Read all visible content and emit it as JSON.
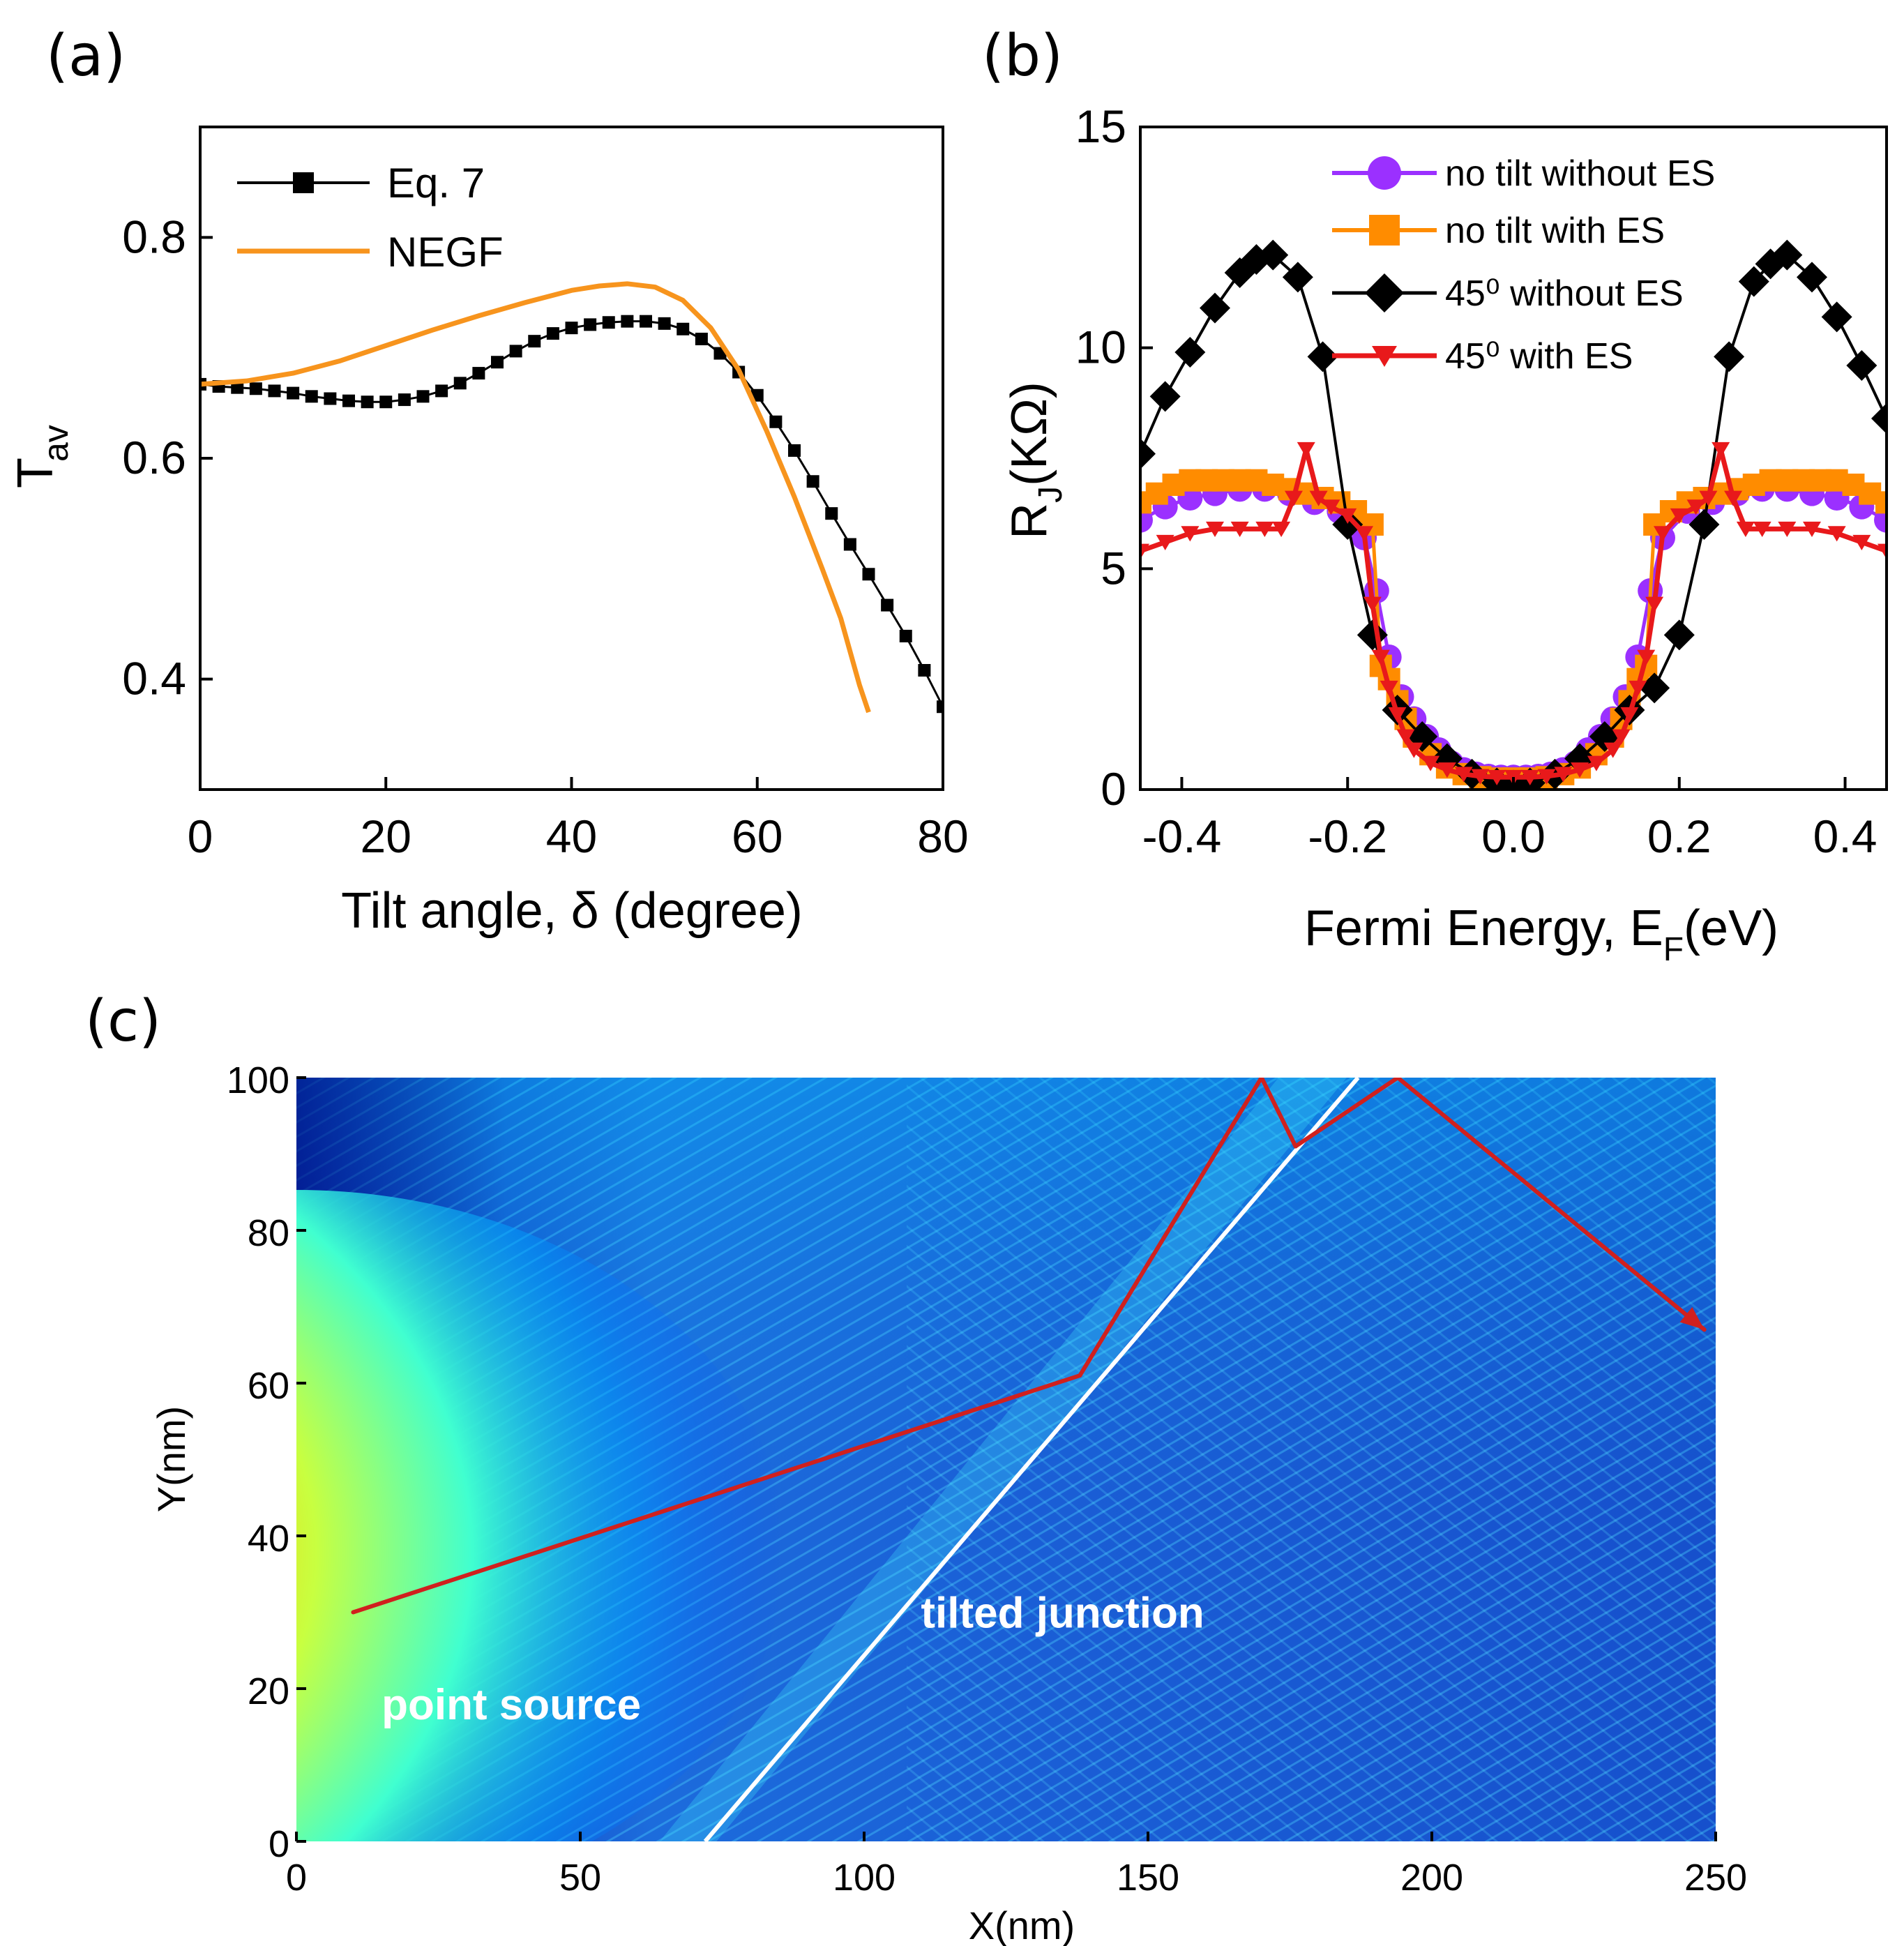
{
  "chart_data": [
    {
      "panel": "(a)",
      "type": "line",
      "xlabel": "Tilt angle, δ (degree)",
      "ylabel_main": "T",
      "ylabel_sub": "av",
      "xlim": [
        0,
        80
      ],
      "ylim": [
        0.3,
        0.9
      ],
      "xticks": [
        0,
        20,
        40,
        60,
        80
      ],
      "yticks": [
        0.4,
        0.6,
        0.8
      ],
      "grid": false,
      "legend_position": "top-left",
      "series": [
        {
          "name": "Eq. 7",
          "color": "#000000",
          "marker": "square",
          "x": [
            0,
            2,
            4,
            6,
            8,
            10,
            12,
            14,
            16,
            18,
            20,
            22,
            24,
            26,
            28,
            30,
            32,
            34,
            36,
            38,
            40,
            42,
            44,
            46,
            48,
            50,
            52,
            54,
            56,
            58,
            60,
            62,
            64,
            66,
            68,
            70,
            72,
            74,
            76,
            78,
            80
          ],
          "y": [
            0.667,
            0.665,
            0.664,
            0.663,
            0.661,
            0.659,
            0.656,
            0.654,
            0.652,
            0.651,
            0.651,
            0.653,
            0.656,
            0.661,
            0.668,
            0.677,
            0.687,
            0.697,
            0.706,
            0.713,
            0.718,
            0.721,
            0.723,
            0.724,
            0.724,
            0.722,
            0.717,
            0.708,
            0.695,
            0.678,
            0.657,
            0.633,
            0.607,
            0.579,
            0.55,
            0.522,
            0.495,
            0.467,
            0.439,
            0.408,
            0.375
          ]
        },
        {
          "name": "NEGF",
          "color": "#F7941D",
          "marker": "none",
          "x": [
            0,
            5,
            10,
            15,
            20,
            25,
            30,
            35,
            40,
            43,
            46,
            49,
            52,
            55,
            58,
            61,
            64,
            67,
            69,
            70,
            71,
            72
          ],
          "y": [
            0.667,
            0.67,
            0.677,
            0.688,
            0.702,
            0.716,
            0.729,
            0.741,
            0.752,
            0.756,
            0.758,
            0.755,
            0.743,
            0.718,
            0.68,
            0.625,
            0.565,
            0.5,
            0.455,
            0.425,
            0.395,
            0.37
          ]
        }
      ]
    },
    {
      "panel": "(b)",
      "type": "line",
      "xlabel_main": "Fermi Energy, E",
      "xlabel_sub": "F",
      "xlabel_tail": "(eV)",
      "ylabel_main": "R",
      "ylabel_sub": "J",
      "ylabel_tail": "(KΩ)",
      "xlim": [
        -0.45,
        0.45
      ],
      "ylim": [
        0,
        15
      ],
      "xticks": [
        -0.4,
        -0.2,
        0.0,
        0.2,
        0.4
      ],
      "xtick_labels": [
        "-0.4",
        "-0.2",
        "0.0",
        "0.2",
        "0.4"
      ],
      "yticks": [
        0,
        5,
        10,
        15
      ],
      "grid": false,
      "legend_position": "top-right",
      "series": [
        {
          "name": "no tilt without ES",
          "color": "#9B30FF",
          "marker": "circle",
          "x": [
            -0.45,
            -0.42,
            -0.39,
            -0.36,
            -0.33,
            -0.3,
            -0.27,
            -0.24,
            -0.21,
            -0.18,
            -0.165,
            -0.15,
            -0.135,
            -0.12,
            -0.105,
            -0.09,
            -0.075,
            -0.06,
            -0.045,
            -0.03,
            -0.015,
            0,
            0.015,
            0.03,
            0.045,
            0.06,
            0.075,
            0.09,
            0.105,
            0.12,
            0.135,
            0.15,
            0.165,
            0.18,
            0.21,
            0.24,
            0.27,
            0.3,
            0.33,
            0.36,
            0.39,
            0.42,
            0.45
          ],
          "y": [
            6.1,
            6.4,
            6.6,
            6.7,
            6.8,
            6.8,
            6.7,
            6.5,
            6.3,
            5.7,
            4.5,
            3.0,
            2.1,
            1.6,
            1.2,
            0.9,
            0.6,
            0.45,
            0.35,
            0.3,
            0.28,
            0.28,
            0.28,
            0.3,
            0.35,
            0.45,
            0.6,
            0.9,
            1.2,
            1.6,
            2.1,
            3.0,
            4.5,
            5.7,
            6.3,
            6.5,
            6.7,
            6.8,
            6.8,
            6.7,
            6.6,
            6.4,
            6.1
          ]
        },
        {
          "name": "no tilt with ES",
          "color": "#FF8C00",
          "marker": "square",
          "x": [
            -0.45,
            -0.43,
            -0.41,
            -0.39,
            -0.37,
            -0.35,
            -0.33,
            -0.31,
            -0.29,
            -0.27,
            -0.25,
            -0.23,
            -0.21,
            -0.19,
            -0.17,
            -0.16,
            -0.15,
            -0.14,
            -0.13,
            -0.12,
            -0.1,
            -0.08,
            -0.06,
            -0.04,
            -0.02,
            0,
            0.02,
            0.04,
            0.06,
            0.08,
            0.1,
            0.12,
            0.13,
            0.14,
            0.15,
            0.16,
            0.17,
            0.19,
            0.21,
            0.23,
            0.25,
            0.27,
            0.29,
            0.31,
            0.33,
            0.35,
            0.37,
            0.39,
            0.41,
            0.43,
            0.45
          ],
          "y": [
            6.5,
            6.7,
            6.9,
            7.0,
            7.0,
            7.0,
            7.0,
            7.0,
            6.9,
            6.8,
            6.7,
            6.6,
            6.5,
            6.3,
            6.0,
            2.8,
            2.5,
            2.0,
            1.6,
            1.2,
            0.8,
            0.5,
            0.35,
            0.28,
            0.25,
            0.25,
            0.25,
            0.28,
            0.35,
            0.5,
            0.8,
            1.2,
            1.6,
            2.0,
            2.5,
            2.8,
            6.0,
            6.3,
            6.5,
            6.6,
            6.7,
            6.8,
            6.9,
            7.0,
            7.0,
            7.0,
            7.0,
            7.0,
            6.9,
            6.7,
            6.5
          ]
        },
        {
          "name": "45⁰ without ES",
          "color": "#000000",
          "marker": "diamond",
          "x": [
            -0.45,
            -0.42,
            -0.39,
            -0.36,
            -0.33,
            -0.31,
            -0.29,
            -0.26,
            -0.23,
            -0.2,
            -0.17,
            -0.14,
            -0.11,
            -0.08,
            -0.05,
            -0.02,
            0,
            0.02,
            0.05,
            0.08,
            0.11,
            0.14,
            0.17,
            0.2,
            0.23,
            0.26,
            0.29,
            0.31,
            0.33,
            0.36,
            0.39,
            0.42,
            0.45
          ],
          "y": [
            7.6,
            8.9,
            9.9,
            10.9,
            11.7,
            12.0,
            12.1,
            11.6,
            9.8,
            6.0,
            3.5,
            1.8,
            1.2,
            0.7,
            0.35,
            0.15,
            0.1,
            0.15,
            0.35,
            0.7,
            1.2,
            1.8,
            2.3,
            3.5,
            6.0,
            9.8,
            11.5,
            11.9,
            12.1,
            11.6,
            10.7,
            9.6,
            8.4
          ]
        },
        {
          "name": "45⁰ with ES",
          "color": "#E8191B",
          "marker": "triangle-down",
          "x": [
            -0.45,
            -0.42,
            -0.39,
            -0.36,
            -0.33,
            -0.3,
            -0.28,
            -0.265,
            -0.25,
            -0.235,
            -0.22,
            -0.2,
            -0.18,
            -0.17,
            -0.16,
            -0.15,
            -0.14,
            -0.13,
            -0.12,
            -0.1,
            -0.08,
            -0.06,
            -0.04,
            -0.02,
            0,
            0.02,
            0.04,
            0.06,
            0.08,
            0.1,
            0.12,
            0.13,
            0.14,
            0.15,
            0.16,
            0.17,
            0.18,
            0.2,
            0.22,
            0.235,
            0.25,
            0.265,
            0.28,
            0.3,
            0.33,
            0.36,
            0.39,
            0.42,
            0.45
          ],
          "y": [
            5.4,
            5.6,
            5.8,
            5.9,
            5.9,
            5.9,
            5.9,
            6.6,
            7.7,
            6.6,
            6.4,
            6.2,
            5.8,
            4.2,
            3.0,
            2.3,
            1.7,
            1.2,
            0.9,
            0.6,
            0.45,
            0.35,
            0.3,
            0.28,
            0.28,
            0.28,
            0.3,
            0.35,
            0.45,
            0.6,
            0.9,
            1.2,
            1.7,
            2.3,
            3.0,
            4.2,
            5.8,
            6.2,
            6.4,
            6.6,
            7.7,
            6.6,
            5.9,
            5.9,
            5.9,
            5.9,
            5.8,
            5.6,
            5.4
          ]
        }
      ]
    },
    {
      "panel": "(c)",
      "type": "heatmap",
      "xlabel": "X(nm)",
      "ylabel": "Y(nm)",
      "xlim": [
        0,
        250
      ],
      "ylim": [
        0,
        100
      ],
      "xticks": [
        0,
        50,
        100,
        150,
        200,
        250
      ],
      "yticks": [
        0,
        20,
        40,
        60,
        80,
        100
      ],
      "colormap": "jet",
      "annotations": [
        {
          "text": "point source",
          "x": 15,
          "y": 16
        },
        {
          "text": "tilted junction",
          "x": 110,
          "y": 28
        }
      ],
      "junction_line": {
        "color": "#ffffff",
        "x": [
          72,
          187
        ],
        "y": [
          0,
          100
        ]
      },
      "source": {
        "x": 0,
        "y": 28
      },
      "ray_path": {
        "color": "#D0201E",
        "x": [
          10,
          138,
          170,
          176,
          194,
          248
        ],
        "y": [
          30,
          61,
          100,
          91,
          100,
          67
        ]
      }
    }
  ]
}
